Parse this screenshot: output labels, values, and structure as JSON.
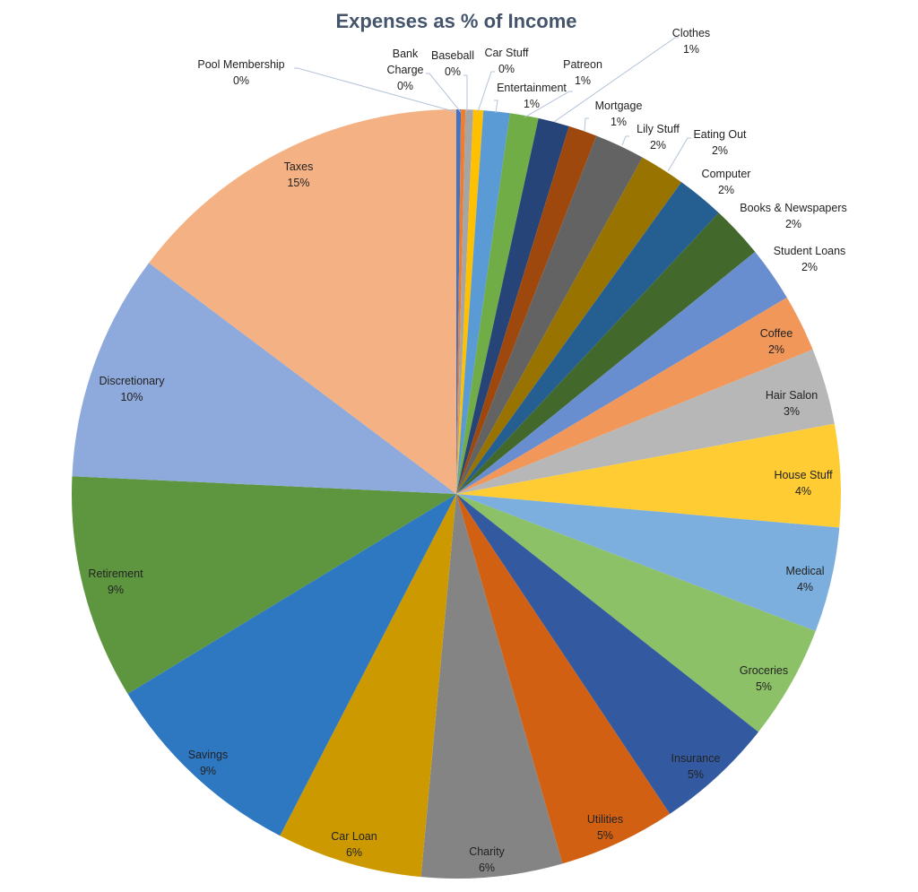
{
  "chart_data": {
    "type": "pie",
    "title": "Expenses as % of Income",
    "value_unit": "%",
    "start": "12 o'clock, clockwise",
    "legend": "none (data labels with category name and percentage)",
    "slices": [
      {
        "label": "Pool Membership",
        "value": 0.19,
        "color": "#4472C4"
      },
      {
        "label": "Bank Charge",
        "value": 0.19,
        "color": "#ED7D31"
      },
      {
        "label": "Baseball",
        "value": 0.32,
        "color": "#A5A5A5"
      },
      {
        "label": "Car Stuff",
        "value": 0.42,
        "color": "#FFC000"
      },
      {
        "label": "Entertainment",
        "value": 1.1,
        "color": "#5B9BD5"
      },
      {
        "label": "Patreon",
        "value": 1.2,
        "color": "#70AD47"
      },
      {
        "label": "Clothes",
        "value": 1.3,
        "color": "#264478"
      },
      {
        "label": "Mortgage",
        "value": 1.2,
        "color": "#9E480E"
      },
      {
        "label": "Lily Stuff",
        "value": 2.1,
        "color": "#636363"
      },
      {
        "label": "Eating Out",
        "value": 1.9,
        "color": "#997300"
      },
      {
        "label": "Computer",
        "value": 2.0,
        "color": "#255E91"
      },
      {
        "label": "Books & Newspapers",
        "value": 2.2,
        "color": "#43682B"
      },
      {
        "label": "Student Loans",
        "value": 2.3,
        "color": "#698ED0"
      },
      {
        "label": "Coffee",
        "value": 2.4,
        "color": "#F1975A"
      },
      {
        "label": "Hair Salon",
        "value": 3.2,
        "color": "#B7B7B7"
      },
      {
        "label": "House Stuff",
        "value": 4.3,
        "color": "#FFCD33"
      },
      {
        "label": "Medical",
        "value": 4.4,
        "color": "#7CAFDD"
      },
      {
        "label": "Groceries",
        "value": 4.8,
        "color": "#8CC168"
      },
      {
        "label": "Insurance",
        "value": 5.0,
        "color": "#335AA1"
      },
      {
        "label": "Utilities",
        "value": 4.9,
        "color": "#D26012"
      },
      {
        "label": "Charity",
        "value": 5.9,
        "color": "#848484"
      },
      {
        "label": "Car Loan",
        "value": 6.1,
        "color": "#CC9A00"
      },
      {
        "label": "Savings",
        "value": 8.7,
        "color": "#2E78C2"
      },
      {
        "label": "Retirement",
        "value": 9.4,
        "color": "#5E9640"
      },
      {
        "label": "Discretionary",
        "value": 9.5,
        "color": "#8EA9DB"
      },
      {
        "label": "Taxes",
        "value": 14.7,
        "color": "#F4B183"
      }
    ],
    "data_labels": [
      "0%",
      "0%",
      "0%",
      "0%",
      "1%",
      "1%",
      "1%",
      "1%",
      "2%",
      "2%",
      "2%",
      "2%",
      "2%",
      "2%",
      "3%",
      "4%",
      "4%",
      "5%",
      "5%",
      "5%",
      "6%",
      "6%",
      "9%",
      "9%",
      "10%",
      "15%"
    ]
  }
}
